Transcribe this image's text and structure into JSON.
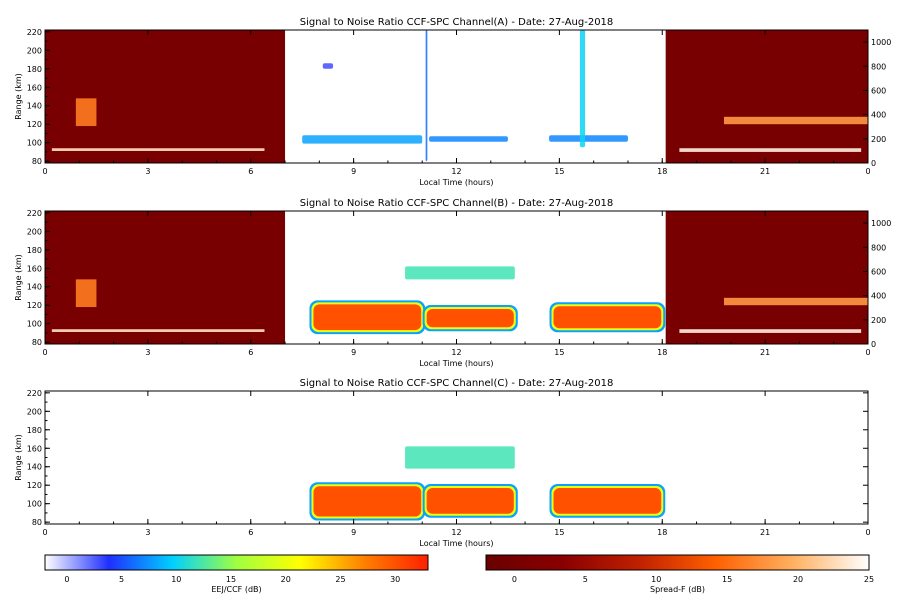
{
  "chart_data": [
    {
      "type": "heatmap",
      "title": "Signal to Noise Ratio CCF-SPC Channel(A) - Date: 27-Aug-2018",
      "xlabel": "Local Time (hours)",
      "ylabel": "Range (km)",
      "xlim": [
        0,
        24
      ],
      "ylim": [
        78,
        222
      ],
      "y2lim": [
        0,
        1100
      ],
      "x_ticks": [
        {
          "v": 0,
          "l": "0"
        },
        {
          "v": 3,
          "l": "3"
        },
        {
          "v": 6,
          "l": "6"
        },
        {
          "v": 9,
          "l": "9"
        },
        {
          "v": 12,
          "l": "12"
        },
        {
          "v": 15,
          "l": "15"
        },
        {
          "v": 18,
          "l": "18"
        },
        {
          "v": 21,
          "l": "21"
        },
        {
          "v": 24,
          "l": "0"
        }
      ],
      "y_ticks": [
        80,
        100,
        120,
        140,
        160,
        180,
        200,
        220
      ],
      "y2_ticks": [
        0,
        200,
        400,
        600,
        800,
        1000
      ],
      "spread_f_blocks": [
        {
          "t0": 0,
          "t1": 7.0,
          "layers": [
            {
              "t0": 0.2,
              "t1": 6.4,
              "h0": 91,
              "h1": 94,
              "level": 23
            },
            {
              "t0": 0.9,
              "t1": 1.5,
              "h0": 118,
              "h1": 148,
              "level": 16
            }
          ]
        },
        {
          "t0": 18.1,
          "t1": 24,
          "layers": [
            {
              "t0": 18.5,
              "t1": 23.8,
              "h0": 90,
              "h1": 94,
              "level": 24
            },
            {
              "t0": 19.8,
              "t1": 24,
              "h0": 120,
              "h1": 128,
              "level": 18
            }
          ]
        }
      ],
      "eej_patches": [
        {
          "t0": 7.5,
          "t1": 11.0,
          "h0": 99,
          "h1": 108,
          "level": 8
        },
        {
          "t0": 11.2,
          "t1": 13.5,
          "h0": 101,
          "h1": 107,
          "level": 7
        },
        {
          "t0": 14.7,
          "t1": 17.0,
          "h0": 101,
          "h1": 108,
          "level": 7
        },
        {
          "t0": 8.1,
          "t1": 8.4,
          "h0": 180,
          "h1": 186,
          "level": 3
        },
        {
          "t0": 15.6,
          "t1": 15.75,
          "h0": 95,
          "h1": 222,
          "level": 10
        },
        {
          "t0": 11.1,
          "t1": 11.15,
          "h0": 80,
          "h1": 222,
          "level": 6
        }
      ]
    },
    {
      "type": "heatmap",
      "title": "Signal to Noise Ratio CCF-SPC Channel(B) - Date: 27-Aug-2018",
      "xlabel": "Local Time (hours)",
      "ylabel": "Range (km)",
      "xlim": [
        0,
        24
      ],
      "ylim": [
        78,
        222
      ],
      "y2lim": [
        0,
        1100
      ],
      "x_ticks": [
        {
          "v": 0,
          "l": "0"
        },
        {
          "v": 3,
          "l": "3"
        },
        {
          "v": 6,
          "l": "6"
        },
        {
          "v": 9,
          "l": "9"
        },
        {
          "v": 12,
          "l": "12"
        },
        {
          "v": 15,
          "l": "15"
        },
        {
          "v": 18,
          "l": "18"
        },
        {
          "v": 21,
          "l": "21"
        },
        {
          "v": 24,
          "l": "0"
        }
      ],
      "y_ticks": [
        80,
        100,
        120,
        140,
        160,
        180,
        200,
        220
      ],
      "y2_ticks": [
        0,
        200,
        400,
        600,
        800,
        1000
      ],
      "spread_f_blocks": [
        {
          "t0": 0,
          "t1": 7.0,
          "layers": [
            {
              "t0": 0.2,
              "t1": 6.4,
              "h0": 91,
              "h1": 94,
              "level": 23
            },
            {
              "t0": 0.9,
              "t1": 1.5,
              "h0": 118,
              "h1": 148,
              "level": 16
            }
          ]
        },
        {
          "t0": 18.1,
          "t1": 24,
          "layers": [
            {
              "t0": 18.5,
              "t1": 23.8,
              "h0": 90,
              "h1": 94,
              "level": 24
            },
            {
              "t0": 19.8,
              "t1": 24,
              "h0": 120,
              "h1": 128,
              "level": 18
            }
          ]
        }
      ],
      "eej_patches": [
        {
          "t0": 7.8,
          "t1": 11.0,
          "h0": 92,
          "h1": 122,
          "level": 30
        },
        {
          "t0": 11.1,
          "t1": 13.7,
          "h0": 95,
          "h1": 117,
          "level": 30
        },
        {
          "t0": 14.8,
          "t1": 18.0,
          "h0": 94,
          "h1": 120,
          "level": 30
        },
        {
          "t0": 10.5,
          "t1": 13.7,
          "h0": 148,
          "h1": 162,
          "level": 12
        }
      ]
    },
    {
      "type": "heatmap",
      "title": "Signal to Noise Ratio CCF-SPC Channel(C) - Date: 27-Aug-2018",
      "xlabel": "Local Time (hours)",
      "ylabel": "Range (km)",
      "xlim": [
        0,
        24
      ],
      "ylim": [
        78,
        222
      ],
      "x_ticks": [
        {
          "v": 0,
          "l": "0"
        },
        {
          "v": 3,
          "l": "3"
        },
        {
          "v": 6,
          "l": "6"
        },
        {
          "v": 9,
          "l": "9"
        },
        {
          "v": 12,
          "l": "12"
        },
        {
          "v": 15,
          "l": "15"
        },
        {
          "v": 18,
          "l": "18"
        },
        {
          "v": 21,
          "l": "21"
        },
        {
          "v": 24,
          "l": "0"
        }
      ],
      "y_ticks": [
        80,
        100,
        120,
        140,
        160,
        180,
        200,
        220
      ],
      "spread_f_blocks": [],
      "eej_patches": [
        {
          "t0": 7.8,
          "t1": 11.0,
          "h0": 85,
          "h1": 120,
          "level": 30
        },
        {
          "t0": 11.1,
          "t1": 13.7,
          "h0": 88,
          "h1": 118,
          "level": 30
        },
        {
          "t0": 14.8,
          "t1": 18.0,
          "h0": 88,
          "h1": 118,
          "level": 30
        },
        {
          "t0": 10.5,
          "t1": 13.7,
          "h0": 138,
          "h1": 162,
          "level": 12
        }
      ]
    }
  ],
  "colorbars": [
    {
      "label": "EEJ/CCF (dB)",
      "min": -2,
      "max": 33,
      "ticks": [
        0,
        5,
        10,
        15,
        20,
        25,
        30
      ],
      "colors": [
        "#ffffff",
        "#1f2fff",
        "#00d0ff",
        "#a0ff40",
        "#ffff00",
        "#ff8000",
        "#ff2000"
      ]
    },
    {
      "label": "Spread-F (dB)",
      "min": -2,
      "max": 25,
      "ticks": [
        0,
        5,
        10,
        15,
        20,
        25
      ],
      "colors": [
        "#6a0000",
        "#8a0000",
        "#c02000",
        "#ff6000",
        "#ffb060",
        "#ffffff"
      ]
    }
  ]
}
